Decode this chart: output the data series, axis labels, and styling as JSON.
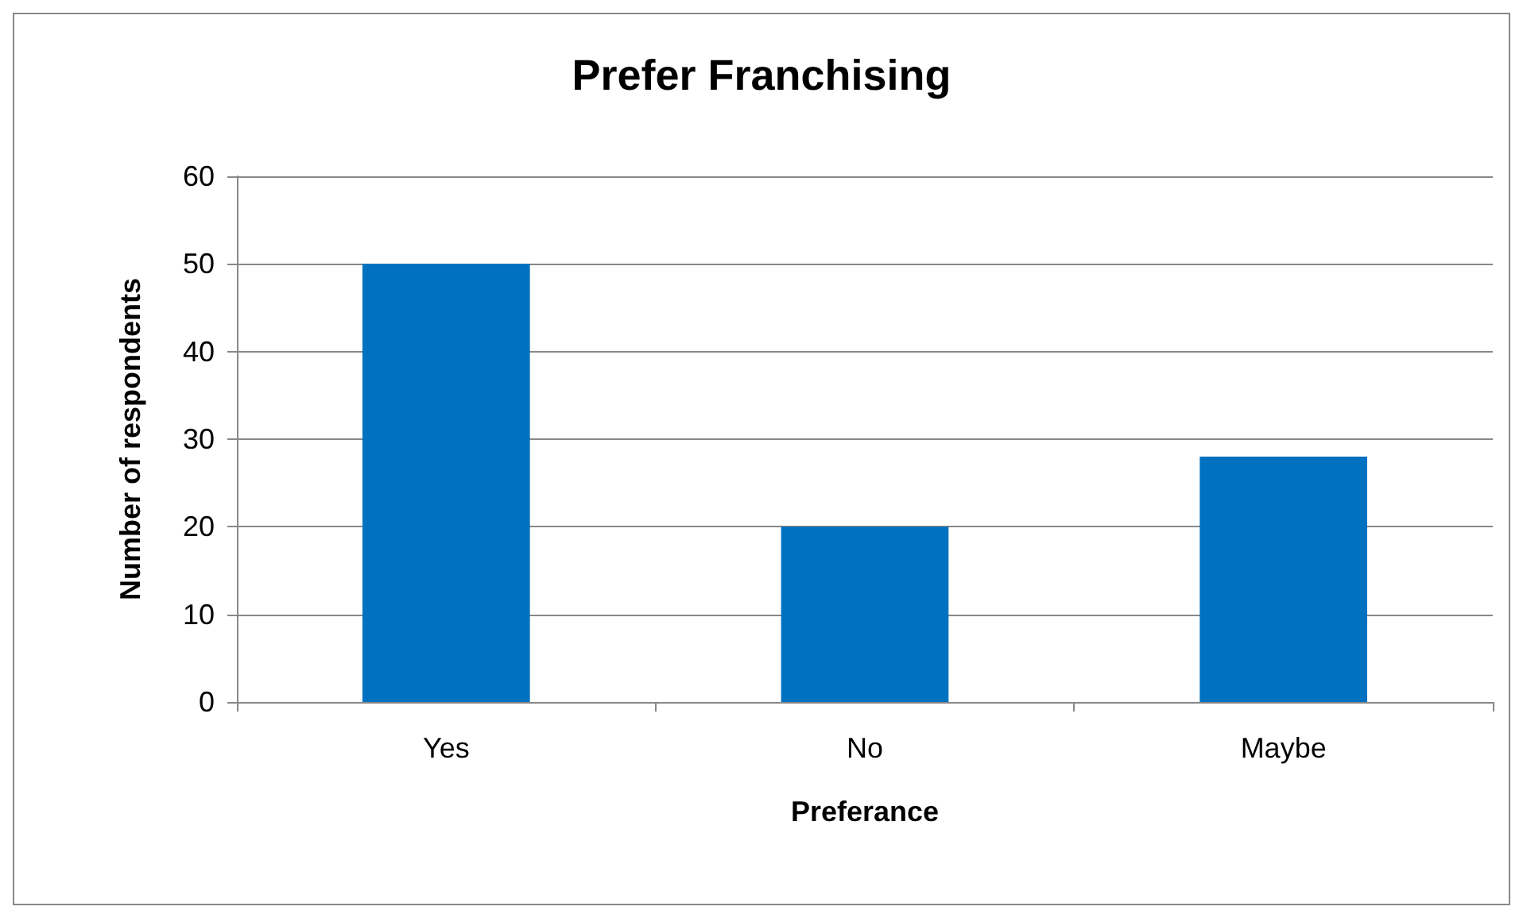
{
  "chart_data": {
    "type": "bar",
    "title": "Prefer Franchising",
    "xlabel": "Preferance",
    "ylabel": "Number of respondents",
    "categories": [
      "Yes",
      "No",
      "Maybe"
    ],
    "values": [
      50,
      20,
      28
    ],
    "color": "#0070c0",
    "ylim": [
      0,
      60
    ],
    "yticks": [
      0,
      10,
      20,
      30,
      40,
      50,
      60
    ],
    "grid": "y"
  }
}
